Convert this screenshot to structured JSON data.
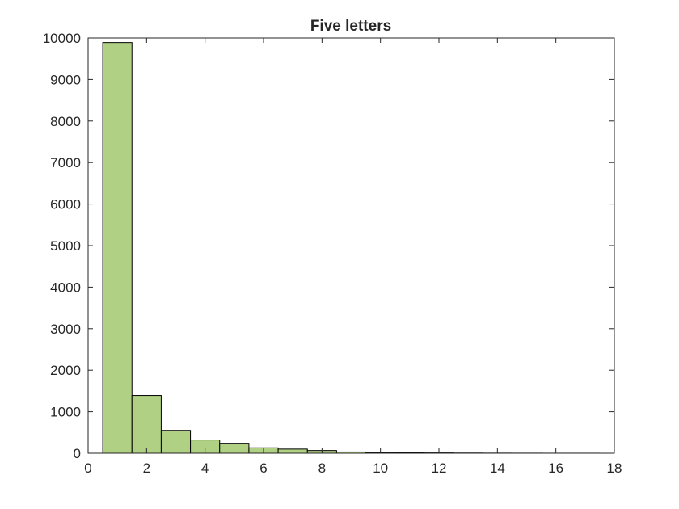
{
  "chart_data": {
    "type": "bar",
    "title": "Five letters",
    "xlabel": "",
    "ylabel": "",
    "xlim": [
      0,
      18
    ],
    "ylim": [
      0,
      10000
    ],
    "xticks": [
      0,
      2,
      4,
      6,
      8,
      10,
      12,
      14,
      16,
      18
    ],
    "yticks": [
      0,
      1000,
      2000,
      3000,
      4000,
      5000,
      6000,
      7000,
      8000,
      9000,
      10000
    ],
    "bin_width": 1,
    "bin_centers": [
      1,
      2,
      3,
      4,
      5,
      6,
      7,
      8,
      9,
      10,
      11,
      12,
      13,
      14,
      15,
      16,
      17
    ],
    "values": [
      9890,
      1390,
      550,
      320,
      240,
      130,
      100,
      65,
      30,
      20,
      15,
      8,
      5,
      3,
      2,
      1,
      1
    ],
    "bar_color": "#b0d083",
    "bar_edge_color": "#000000",
    "grid": false,
    "legend": "none"
  }
}
